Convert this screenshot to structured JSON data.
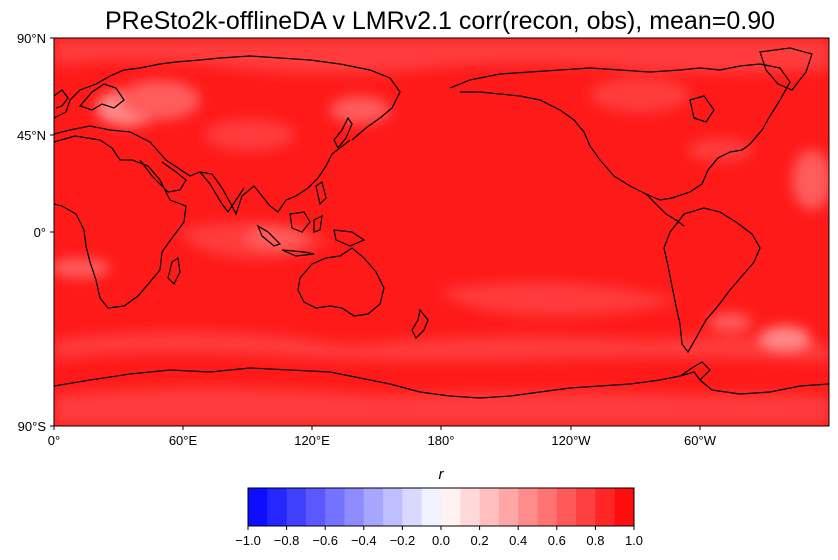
{
  "map": {
    "title": "PReSto2k-offlineDA v LMRv2.1 corr(recon, obs), mean=0.90",
    "projection": "PlateCarree, central longitude 180",
    "lat_ticks": [
      "90°N",
      "45°N",
      "0°",
      "90°S"
    ],
    "lon_ticks": [
      "0°",
      "60°E",
      "120°E",
      "180°",
      "120°W",
      "60°W"
    ],
    "field_colors": {
      "dominant": "#ff1a1a",
      "high": "#ff0000",
      "moderate": "#ff3a3a",
      "lower": "#ff5c5c",
      "lowest": "#ff8888"
    },
    "coastline_color": "#000000"
  },
  "colorbar": {
    "label": "r",
    "colormap": "bwr",
    "range": [
      -1.0,
      1.0
    ],
    "levels": 20,
    "tick_labels": [
      "−1.0",
      "−0.8",
      "−0.6",
      "−0.4",
      "−0.2",
      "0.0",
      "0.2",
      "0.4",
      "0.6",
      "0.8",
      "1.0"
    ]
  }
}
